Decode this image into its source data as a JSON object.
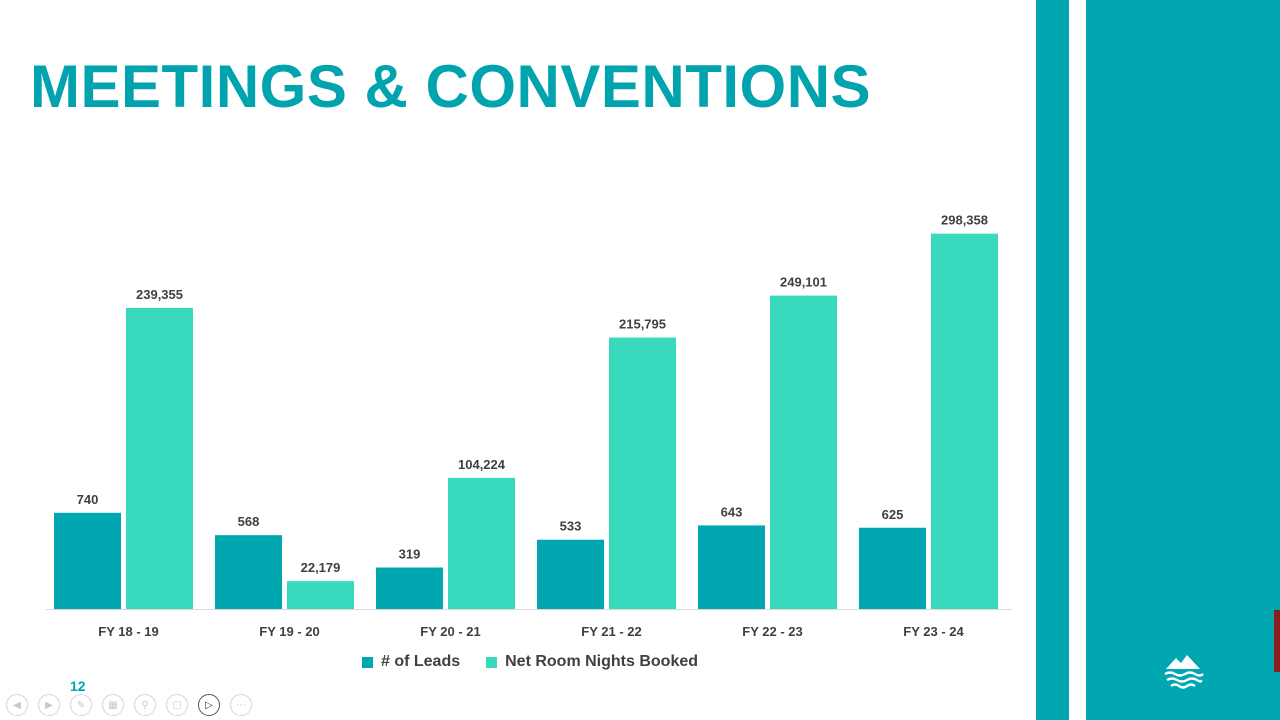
{
  "slide": {
    "title": "MEETINGS & CONVENTIONS",
    "page_number": "12"
  },
  "colors": {
    "title": "#00A3AE",
    "leads": "#00A6B0",
    "room_nights": "#38D9BD",
    "stripe": "#00A6B0",
    "logo": "#00A6B0"
  },
  "icons": {
    "logo": "mountain-waves-logo",
    "controls": [
      "previous-slide-icon",
      "next-slide-icon",
      "pen-icon",
      "slides-grid-icon",
      "zoom-icon",
      "subtitles-icon",
      "camera-icon",
      "more-options-icon"
    ]
  },
  "chart_data": {
    "type": "bar",
    "categories": [
      "FY 18 - 19",
      "FY 19 - 20",
      "FY 20 - 21",
      "FY 21 - 22",
      "FY 22 - 23",
      "FY 23 - 24"
    ],
    "series": [
      {
        "name": "# of Leads",
        "values": [
          740,
          568,
          319,
          533,
          643,
          625
        ],
        "labels": [
          "740",
          "568",
          "319",
          "533",
          "643",
          "625"
        ],
        "color": "#00A6B0",
        "secondary_axis": true,
        "axis_range": [
          0,
          3000
        ]
      },
      {
        "name": "Net Room Nights Booked",
        "values": [
          239355,
          22179,
          104224,
          215795,
          249101,
          298358
        ],
        "labels": [
          "239,355",
          "22,179",
          "104,224",
          "215,795",
          "249,101",
          "298,358"
        ],
        "color": "#38D9BD",
        "secondary_axis": false
      }
    ],
    "title": "",
    "xlabel": "",
    "ylabel": "",
    "legend": "bottom",
    "grid": false
  }
}
